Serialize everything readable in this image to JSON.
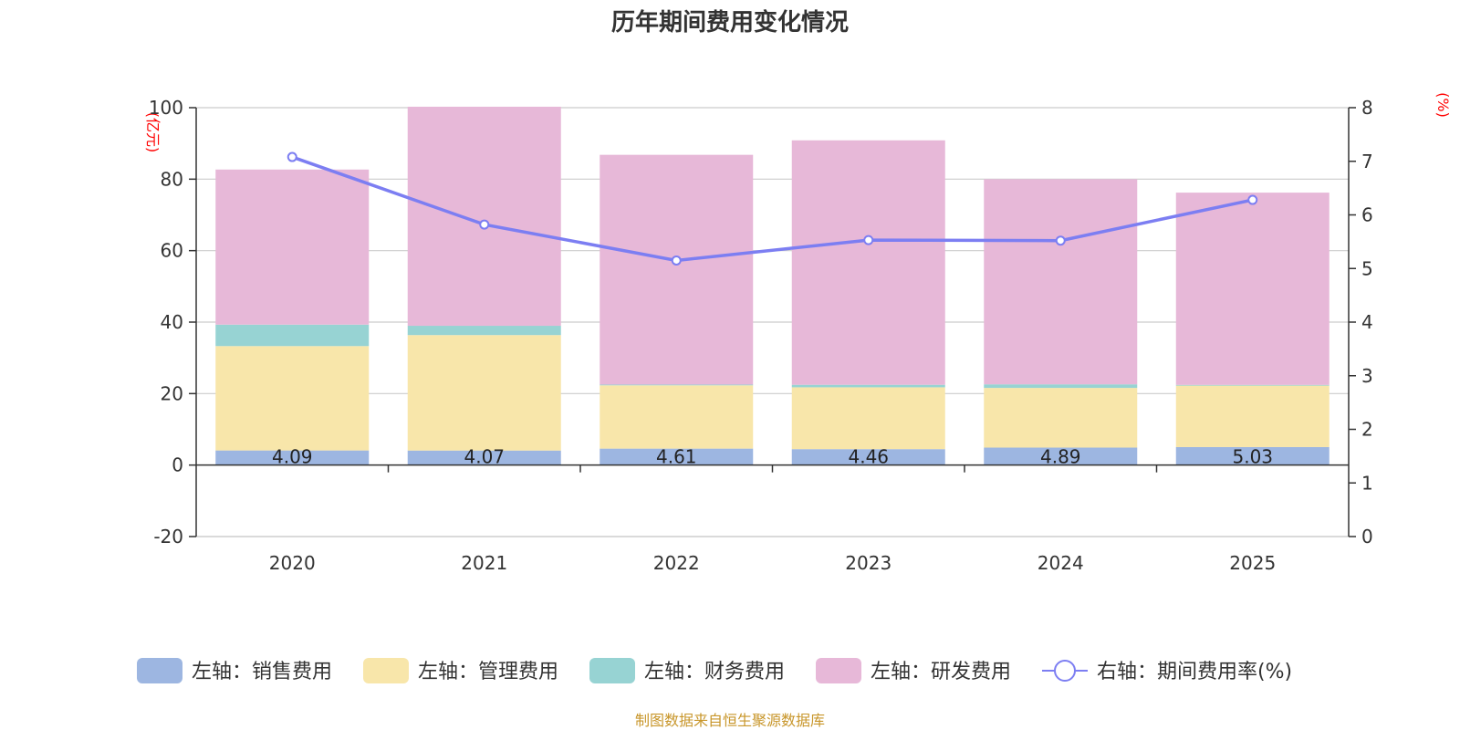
{
  "colors": {
    "sales": "#9db6e1",
    "admin": "#f8e6aa",
    "finance": "#97d3d3",
    "rd": "#e7b8d8",
    "line": "#7c7ef2",
    "axis": "#333333",
    "grid": "#cccccc",
    "unit": "#ff0000",
    "source": "#c8962a"
  },
  "chart_data": {
    "type": "bar",
    "stacked": true,
    "title": "历年期间费用变化情况",
    "categories": [
      "2020",
      "2021",
      "2022",
      "2023",
      "2024",
      "2025"
    ],
    "left_axis": {
      "unit": "(亿元)",
      "ylim": [
        -20,
        100
      ],
      "ticks": [
        "-20",
        "0",
        "20",
        "40",
        "60",
        "80",
        "100"
      ]
    },
    "right_axis": {
      "unit": "(%)",
      "ylim": [
        0,
        8
      ],
      "ticks": [
        "0",
        "1",
        "2",
        "3",
        "4",
        "5",
        "6",
        "7",
        "8"
      ]
    },
    "series": [
      {
        "key": "sales",
        "name": "左轴：销售费用",
        "axis": "left",
        "values": [
          4.09,
          4.07,
          4.61,
          4.46,
          4.89,
          5.03
        ],
        "labels": [
          "4.09",
          "4.07",
          "4.61",
          "4.46",
          "4.89",
          "5.03"
        ]
      },
      {
        "key": "admin",
        "name": "左轴：管理费用",
        "axis": "left",
        "values": [
          29.2,
          32.3,
          17.7,
          17.3,
          16.7,
          17.2
        ]
      },
      {
        "key": "finance",
        "name": "左轴：财务费用",
        "axis": "left",
        "values": [
          6.0,
          2.6,
          0.2,
          0.7,
          1.0,
          0.2
        ]
      },
      {
        "key": "rd",
        "name": "左轴：研发费用",
        "axis": "left",
        "values": [
          43.4,
          61.3,
          64.3,
          68.4,
          57.4,
          53.8
        ]
      }
    ],
    "line": {
      "key": "line",
      "name": "右轴：期间费用率(%)",
      "axis": "right",
      "values": [
        7.08,
        5.82,
        5.15,
        5.53,
        5.52,
        6.28
      ]
    }
  },
  "source_note": "制图数据来自恒生聚源数据库"
}
